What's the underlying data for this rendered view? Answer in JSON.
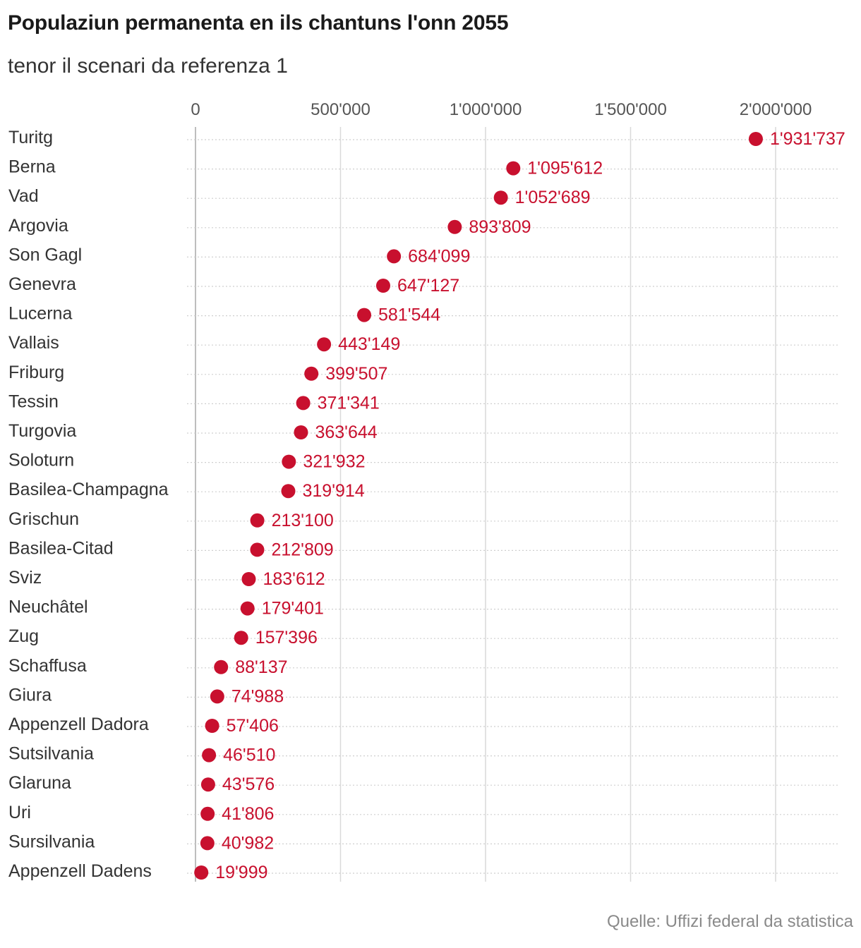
{
  "title": "Populaziun permanenta en ils chantuns l'onn 2055",
  "subtitle": "tenor il scenari da referenza 1",
  "source": "Quelle: Uffizi federal da statistica",
  "colors": {
    "dot": "#c8102e",
    "label": "#c8102e",
    "grid": "#d9d9d9",
    "zero_axis": "#bdbdbd",
    "row_line": "#cfcfcf"
  },
  "chart_data": {
    "type": "scatter",
    "orientation": "horizontal-dot",
    "xlim": [
      0,
      2200000
    ],
    "ticks": [
      {
        "value": 0,
        "label": "0"
      },
      {
        "value": 500000,
        "label": "500'000"
      },
      {
        "value": 1000000,
        "label": "1'000'000"
      },
      {
        "value": 1500000,
        "label": "1'500'000"
      },
      {
        "value": 2000000,
        "label": "2'000'000"
      }
    ],
    "grid": true,
    "rows": [
      {
        "category": "Turitg",
        "value": 1931737,
        "label": "1'931'737"
      },
      {
        "category": "Berna",
        "value": 1095612,
        "label": "1'095'612"
      },
      {
        "category": "Vad",
        "value": 1052689,
        "label": "1'052'689"
      },
      {
        "category": "Argovia",
        "value": 893809,
        "label": "893'809"
      },
      {
        "category": "Son Gagl",
        "value": 684099,
        "label": "684'099"
      },
      {
        "category": "Genevra",
        "value": 647127,
        "label": "647'127"
      },
      {
        "category": "Lucerna",
        "value": 581544,
        "label": "581'544"
      },
      {
        "category": "Vallais",
        "value": 443149,
        "label": "443'149"
      },
      {
        "category": "Friburg",
        "value": 399507,
        "label": "399'507"
      },
      {
        "category": "Tessin",
        "value": 371341,
        "label": "371'341"
      },
      {
        "category": "Turgovia",
        "value": 363644,
        "label": "363'644"
      },
      {
        "category": "Soloturn",
        "value": 321932,
        "label": "321'932"
      },
      {
        "category": "Basilea-Champagna",
        "value": 319914,
        "label": "319'914"
      },
      {
        "category": "Grischun",
        "value": 213100,
        "label": "213'100"
      },
      {
        "category": "Basilea-Citad",
        "value": 212809,
        "label": "212'809"
      },
      {
        "category": "Sviz",
        "value": 183612,
        "label": "183'612"
      },
      {
        "category": "Neuchâtel",
        "value": 179401,
        "label": "179'401"
      },
      {
        "category": "Zug",
        "value": 157396,
        "label": "157'396"
      },
      {
        "category": "Schaffusa",
        "value": 88137,
        "label": "88'137"
      },
      {
        "category": "Giura",
        "value": 74988,
        "label": "74'988"
      },
      {
        "category": "Appenzell Dadora",
        "value": 57406,
        "label": "57'406"
      },
      {
        "category": "Sutsilvania",
        "value": 46510,
        "label": "46'510"
      },
      {
        "category": "Glaruna",
        "value": 43576,
        "label": "43'576"
      },
      {
        "category": "Uri",
        "value": 41806,
        "label": "41'806"
      },
      {
        "category": "Sursilvania",
        "value": 40982,
        "label": "40'982"
      },
      {
        "category": "Appenzell Dadens",
        "value": 19999,
        "label": "19'999"
      }
    ]
  }
}
